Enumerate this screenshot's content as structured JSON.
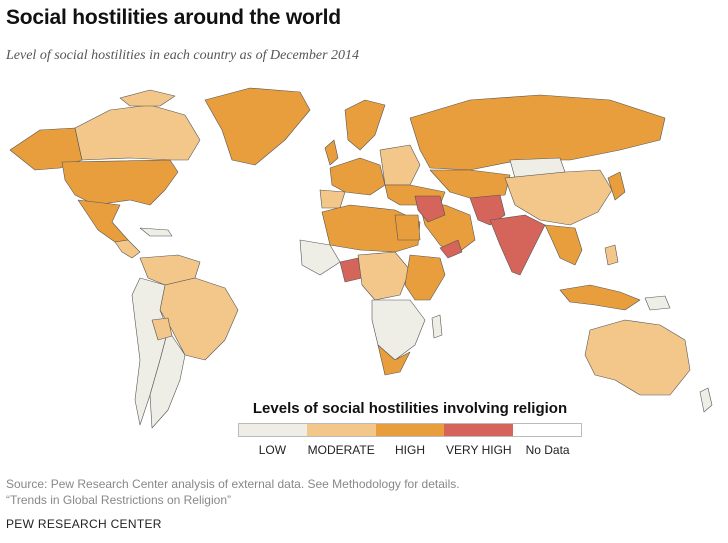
{
  "header": {
    "title": "Social hostilities around the world",
    "subtitle": "Level of social hostilities in each country as of December 2014"
  },
  "legend": {
    "title": "Levels of social hostilities involving religion",
    "items": [
      {
        "label": "LOW",
        "color": "#eeede6"
      },
      {
        "label": "MODERATE",
        "color": "#f3c68a"
      },
      {
        "label": "HIGH",
        "color": "#e99e3d"
      },
      {
        "label": "VERY HIGH",
        "color": "#d5655a"
      },
      {
        "label": "No Data",
        "color": "#ffffff"
      }
    ]
  },
  "source": {
    "line1": "Source: Pew Research Center analysis of external data. See Methodology for details.",
    "line2": "“Trends in Global Restrictions on Religion”"
  },
  "footer": {
    "brand": "PEW RESEARCH CENTER"
  },
  "colors": {
    "low": "#eeede6",
    "moderate": "#f3c68a",
    "high": "#e99e3d",
    "very_high": "#d5655a",
    "border": "#555555"
  }
}
